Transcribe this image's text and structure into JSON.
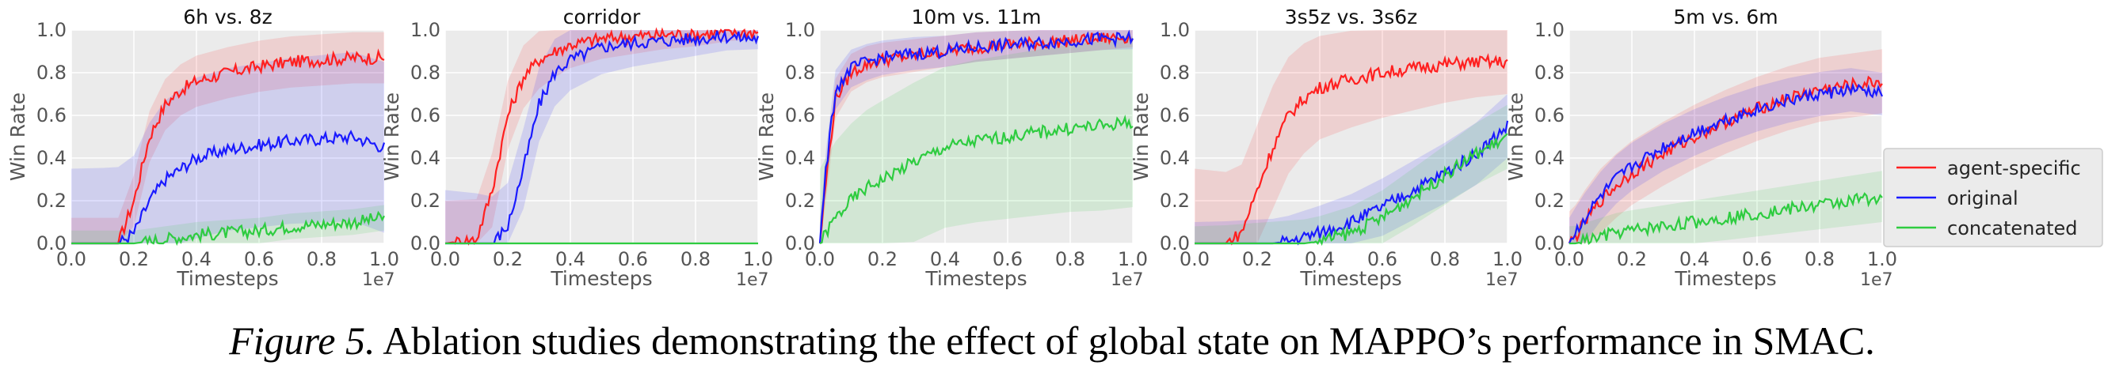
{
  "figure": {
    "caption_label": "Figure 5.",
    "caption_text": "Ablation studies demonstrating the effect of global state on MAPPO’s performance in SMAC."
  },
  "colors": {
    "agent-specific": "#ff2020",
    "original": "#1a1aff",
    "concatenated": "#2ecc40",
    "panel_bg": "#ebebeb",
    "grid": "#ffffff"
  },
  "chart_data": [
    {
      "type": "line",
      "title": "6h vs. 8z",
      "xlabel": "Timesteps",
      "ylabel": "Win Rate",
      "x_multiplier_label": "1e7",
      "xlim": [
        0,
        1.0
      ],
      "ylim": [
        0,
        1.0
      ],
      "x_ticks": [
        "0.0",
        "0.2",
        "0.4",
        "0.6",
        "0.8",
        "1.0"
      ],
      "y_ticks": [
        "0.0",
        "0.2",
        "0.4",
        "0.6",
        "0.8",
        "1.0"
      ],
      "grid": true,
      "x": [
        0,
        0.1,
        0.15,
        0.2,
        0.25,
        0.3,
        0.35,
        0.4,
        0.5,
        0.6,
        0.7,
        0.8,
        0.9,
        1.0
      ],
      "series": [
        {
          "name": "agent-specific",
          "values": [
            0,
            0,
            0,
            0.2,
            0.5,
            0.65,
            0.72,
            0.76,
            0.8,
            0.83,
            0.85,
            0.86,
            0.87,
            0.87
          ],
          "band": [
            0.12,
            0.12
          ]
        },
        {
          "name": "original",
          "values": [
            0,
            0,
            0,
            0.05,
            0.2,
            0.3,
            0.35,
            0.4,
            0.44,
            0.46,
            0.48,
            0.49,
            0.5,
            0.45
          ],
          "band": [
            0.35,
            0.4
          ]
        },
        {
          "name": "concatenated",
          "values": [
            0,
            0,
            0,
            0,
            0.01,
            0.02,
            0.03,
            0.04,
            0.05,
            0.06,
            0.08,
            0.09,
            0.1,
            0.12
          ],
          "band": [
            0.06,
            0.06
          ]
        }
      ]
    },
    {
      "type": "line",
      "title": "corridor",
      "xlabel": "Timesteps",
      "ylabel": "Win Rate",
      "x_multiplier_label": "1e7",
      "xlim": [
        0,
        1.0
      ],
      "ylim": [
        0,
        1.0
      ],
      "x_ticks": [
        "0.0",
        "0.2",
        "0.4",
        "0.6",
        "0.8",
        "1.0"
      ],
      "y_ticks": [
        "0.0",
        "0.2",
        "0.4",
        "0.6",
        "0.8",
        "1.0"
      ],
      "grid": true,
      "x": [
        0,
        0.1,
        0.15,
        0.2,
        0.25,
        0.3,
        0.35,
        0.4,
        0.5,
        0.6,
        0.7,
        0.8,
        0.9,
        1.0
      ],
      "series": [
        {
          "name": "agent-specific",
          "values": [
            0,
            0.02,
            0.25,
            0.6,
            0.78,
            0.86,
            0.9,
            0.93,
            0.96,
            0.97,
            0.98,
            0.98,
            0.99,
            0.99
          ],
          "band": [
            0.2,
            0.03
          ]
        },
        {
          "name": "original",
          "values": [
            0,
            0,
            0,
            0.08,
            0.35,
            0.65,
            0.8,
            0.86,
            0.92,
            0.94,
            0.95,
            0.96,
            0.97,
            0.96
          ],
          "band": [
            0.25,
            0.05
          ]
        },
        {
          "name": "concatenated",
          "values": [
            0,
            0,
            0,
            0,
            0,
            0,
            0,
            0,
            0,
            0,
            0,
            0,
            0,
            0
          ],
          "band": [
            0.005,
            0.005
          ]
        }
      ]
    },
    {
      "type": "line",
      "title": "10m vs. 11m",
      "xlabel": "Timesteps",
      "ylabel": "Win Rate",
      "x_multiplier_label": "1e7",
      "xlim": [
        0,
        1.0
      ],
      "ylim": [
        0,
        1.0
      ],
      "x_ticks": [
        "0.0",
        "0.2",
        "0.4",
        "0.6",
        "0.8",
        "1.0"
      ],
      "y_ticks": [
        "0.0",
        "0.2",
        "0.4",
        "0.6",
        "0.8",
        "1.0"
      ],
      "grid": true,
      "x": [
        0,
        0.02,
        0.05,
        0.1,
        0.15,
        0.2,
        0.3,
        0.4,
        0.5,
        0.6,
        0.7,
        0.8,
        0.9,
        1.0
      ],
      "series": [
        {
          "name": "agent-specific",
          "values": [
            0,
            0.3,
            0.68,
            0.8,
            0.84,
            0.86,
            0.88,
            0.9,
            0.92,
            0.93,
            0.94,
            0.95,
            0.96,
            0.97
          ],
          "band": [
            0.1,
            0.05
          ]
        },
        {
          "name": "original",
          "values": [
            0,
            0.35,
            0.72,
            0.82,
            0.85,
            0.87,
            0.89,
            0.9,
            0.92,
            0.93,
            0.94,
            0.95,
            0.96,
            0.96
          ],
          "band": [
            0.1,
            0.05
          ]
        },
        {
          "name": "concatenated",
          "values": [
            0,
            0.05,
            0.12,
            0.2,
            0.26,
            0.3,
            0.38,
            0.45,
            0.48,
            0.5,
            0.52,
            0.54,
            0.55,
            0.57
          ],
          "band": [
            0.35,
            0.4
          ]
        }
      ]
    },
    {
      "type": "line",
      "title": "3s5z vs. 3s6z",
      "xlabel": "Timesteps",
      "ylabel": "Win Rate",
      "x_multiplier_label": "1e7",
      "xlim": [
        0,
        1.0
      ],
      "ylim": [
        0,
        1.0
      ],
      "x_ticks": [
        "0.0",
        "0.2",
        "0.4",
        "0.6",
        "0.8",
        "1.0"
      ],
      "y_ticks": [
        "0.0",
        "0.2",
        "0.4",
        "0.6",
        "0.8",
        "1.0"
      ],
      "grid": true,
      "x": [
        0,
        0.1,
        0.15,
        0.2,
        0.25,
        0.3,
        0.35,
        0.4,
        0.5,
        0.6,
        0.7,
        0.8,
        0.9,
        1.0
      ],
      "series": [
        {
          "name": "agent-specific",
          "values": [
            0,
            0,
            0.05,
            0.25,
            0.45,
            0.6,
            0.68,
            0.73,
            0.77,
            0.8,
            0.82,
            0.84,
            0.85,
            0.85
          ],
          "band": [
            0.35,
            0.15
          ]
        },
        {
          "name": "original",
          "values": [
            0,
            0,
            0,
            0,
            0,
            0.01,
            0.03,
            0.05,
            0.1,
            0.17,
            0.25,
            0.33,
            0.42,
            0.55
          ],
          "band": [
            0.1,
            0.15
          ]
        },
        {
          "name": "concatenated",
          "values": [
            0,
            0,
            0,
            0,
            0,
            0,
            0,
            0.01,
            0.05,
            0.12,
            0.22,
            0.32,
            0.42,
            0.5
          ],
          "band": [
            0.08,
            0.15
          ]
        }
      ]
    },
    {
      "type": "line",
      "title": "5m vs. 6m",
      "xlabel": "Timesteps",
      "ylabel": "Win Rate",
      "x_multiplier_label": "1e7",
      "xlim": [
        0,
        1.0
      ],
      "ylim": [
        0,
        1.0
      ],
      "x_ticks": [
        "0.0",
        "0.2",
        "0.4",
        "0.6",
        "0.8",
        "1.0"
      ],
      "y_ticks": [
        "0.0",
        "0.2",
        "0.4",
        "0.6",
        "0.8",
        "1.0"
      ],
      "grid": true,
      "x": [
        0,
        0.02,
        0.05,
        0.1,
        0.15,
        0.2,
        0.3,
        0.4,
        0.5,
        0.6,
        0.7,
        0.8,
        0.9,
        1.0
      ],
      "series": [
        {
          "name": "agent-specific",
          "values": [
            0,
            0.03,
            0.1,
            0.2,
            0.27,
            0.33,
            0.42,
            0.5,
            0.57,
            0.63,
            0.68,
            0.72,
            0.74,
            0.76
          ],
          "band": [
            0.15,
            0.15
          ]
        },
        {
          "name": "original",
          "values": [
            0,
            0.05,
            0.12,
            0.22,
            0.3,
            0.36,
            0.45,
            0.52,
            0.58,
            0.63,
            0.67,
            0.7,
            0.72,
            0.7
          ],
          "band": [
            0.12,
            0.1
          ]
        },
        {
          "name": "concatenated",
          "values": [
            0,
            0,
            0.01,
            0.03,
            0.05,
            0.06,
            0.08,
            0.1,
            0.12,
            0.14,
            0.16,
            0.18,
            0.2,
            0.22
          ],
          "band": [
            0.08,
            0.12
          ]
        }
      ]
    }
  ],
  "legend": {
    "placement": "right",
    "entries": [
      "agent-specific",
      "original",
      "concatenated"
    ]
  }
}
